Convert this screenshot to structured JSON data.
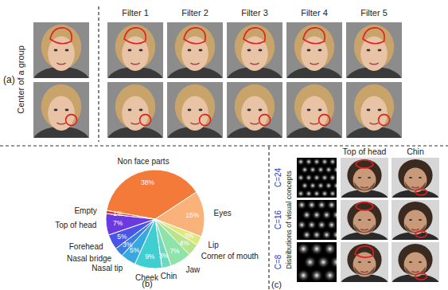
{
  "panel_a": {
    "label": "(a)",
    "row_label": "Center of a group",
    "columns": [
      "Filter 1",
      "Filter 2",
      "Filter 3",
      "Filter 4",
      "Filter 5"
    ]
  },
  "chart_data": {
    "type": "pie",
    "title": "(b)",
    "categories": [
      "Non face parts",
      "Eyes",
      "Lip",
      "Corner of mouth",
      "Jaw",
      "Chin",
      "Cheek",
      "Nasal tip",
      "Nasal bridge",
      "Forehead",
      "Top of head",
      "Empty"
    ],
    "values": [
      38,
      15,
      3,
      4,
      7,
      3,
      9,
      5,
      3,
      5,
      7,
      1
    ],
    "value_labels": [
      "38%",
      "15%",
      "3%",
      "4%",
      "7%",
      "3%",
      "9%",
      "5%",
      "3%",
      "5%",
      "7%",
      "1%"
    ],
    "colors": [
      "#f47a3a",
      "#f8b27a",
      "#dfe87a",
      "#b9e38c",
      "#8fe3a8",
      "#6fd9c0",
      "#3fcfd0",
      "#3aa8e0",
      "#3a7fe0",
      "#4a55e8",
      "#6a3ae0",
      "#e03030"
    ],
    "data_labels": true
  },
  "panel_c": {
    "label": "(c)",
    "axis_label": "Distributions of visual concepts",
    "columns": [
      "Top of head",
      "Chin"
    ],
    "rows": [
      "C=24",
      "C=16",
      "C=8"
    ]
  }
}
